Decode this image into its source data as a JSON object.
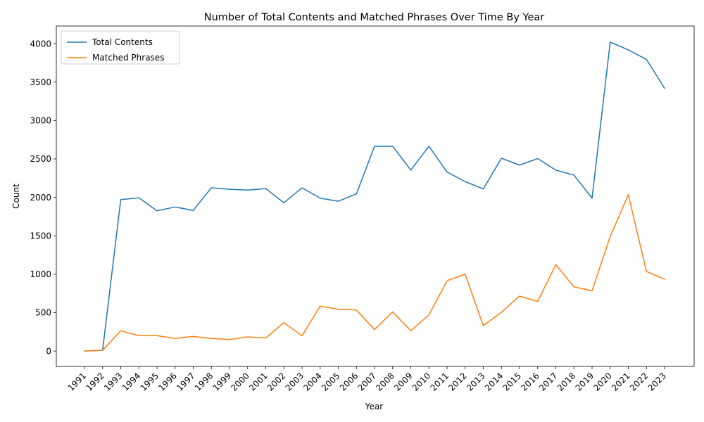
{
  "chart_data": {
    "type": "line",
    "title": "Number of Total Contents and Matched Phrases Over Time By Year",
    "xlabel": "Year",
    "ylabel": "Count",
    "categories": [
      "1991",
      "1992",
      "1993",
      "1994",
      "1995",
      "1996",
      "1997",
      "1998",
      "1999",
      "2000",
      "2001",
      "2002",
      "2003",
      "2004",
      "2005",
      "2006",
      "2007",
      "2008",
      "2009",
      "2010",
      "2011",
      "2012",
      "2013",
      "2014",
      "2015",
      "2016",
      "2017",
      "2018",
      "2019",
      "2020",
      "2021",
      "2022",
      "2023"
    ],
    "ylim": [
      -200,
      4230
    ],
    "yticks": [
      0,
      500,
      1000,
      1500,
      2000,
      2500,
      3000,
      3500,
      4000
    ],
    "grid": false,
    "legend_position": "top-left",
    "series": [
      {
        "name": "Total Contents",
        "color": "#1f77b4",
        "values": [
          0,
          10,
          1970,
          1995,
          1825,
          1875,
          1830,
          2125,
          2105,
          2095,
          2115,
          1930,
          2125,
          1990,
          1950,
          2045,
          2665,
          2665,
          2355,
          2665,
          2330,
          2205,
          2110,
          2510,
          2420,
          2505,
          2355,
          2290,
          1990,
          4020,
          3920,
          3795,
          3420
        ]
      },
      {
        "name": "Matched Phrases",
        "color": "#ff7f0e",
        "values": [
          0,
          10,
          265,
          200,
          200,
          165,
          190,
          165,
          150,
          185,
          170,
          370,
          200,
          585,
          545,
          535,
          280,
          510,
          265,
          470,
          915,
          1000,
          330,
          505,
          715,
          645,
          1125,
          835,
          785,
          1490,
          2035,
          1035,
          935
        ]
      }
    ]
  }
}
